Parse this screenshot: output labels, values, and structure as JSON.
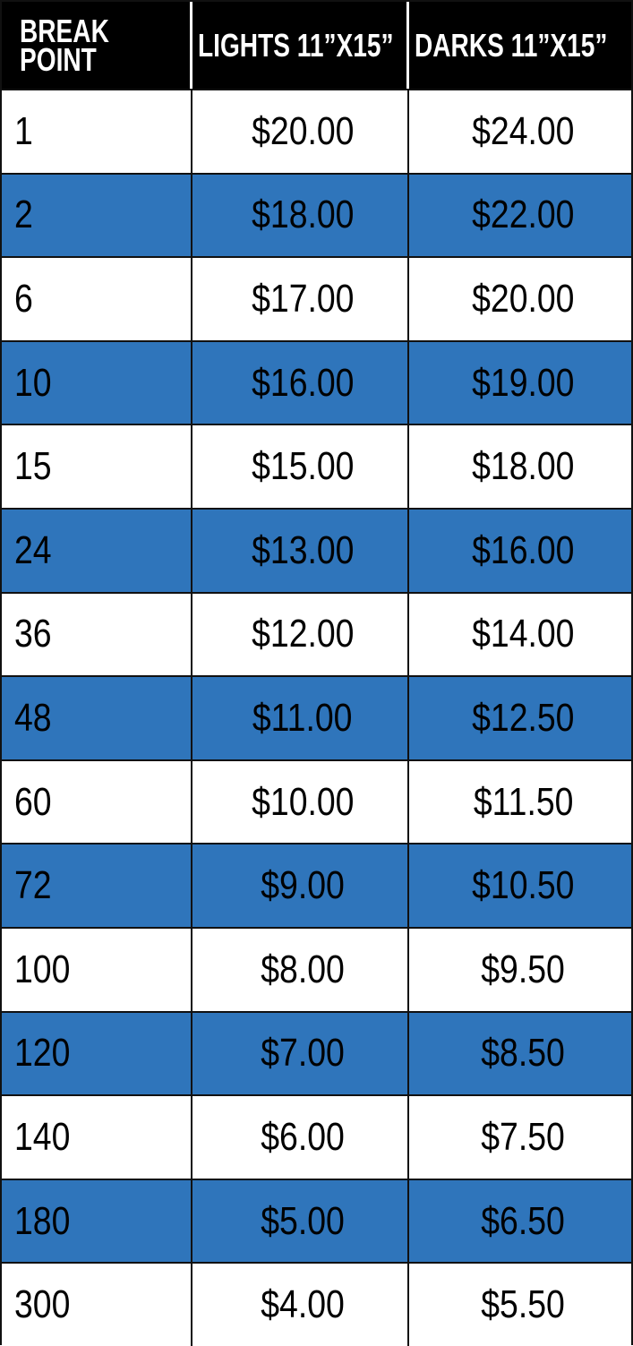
{
  "table": {
    "headers": [
      "BREAK POINT",
      "LIGHTS 11”X15”",
      "DARKS 11”X15”"
    ],
    "header_lines": {
      "col0": [
        "BREAK",
        "POINT"
      ]
    },
    "row_colors": {
      "odd": "#ffffff",
      "even": "#2f75bb",
      "header": "#000000"
    },
    "rows": [
      {
        "break": "1",
        "lights": "$20.00",
        "darks": "$24.00"
      },
      {
        "break": "2",
        "lights": "$18.00",
        "darks": "$22.00"
      },
      {
        "break": "6",
        "lights": "$17.00",
        "darks": "$20.00"
      },
      {
        "break": "10",
        "lights": "$16.00",
        "darks": "$19.00"
      },
      {
        "break": "15",
        "lights": "$15.00",
        "darks": "$18.00"
      },
      {
        "break": "24",
        "lights": "$13.00",
        "darks": "$16.00"
      },
      {
        "break": "36",
        "lights": "$12.00",
        "darks": "$14.00"
      },
      {
        "break": "48",
        "lights": "$11.00",
        "darks": "$12.50"
      },
      {
        "break": "60",
        "lights": "$10.00",
        "darks": "$11.50"
      },
      {
        "break": "72",
        "lights": "$9.00",
        "darks": "$10.50"
      },
      {
        "break": "100",
        "lights": "$8.00",
        "darks": "$9.50"
      },
      {
        "break": "120",
        "lights": "$7.00",
        "darks": "$8.50"
      },
      {
        "break": "140",
        "lights": "$6.00",
        "darks": "$7.50"
      },
      {
        "break": "180",
        "lights": "$5.00",
        "darks": "$6.50"
      },
      {
        "break": "300",
        "lights": "$4.00",
        "darks": "$5.50"
      }
    ]
  }
}
